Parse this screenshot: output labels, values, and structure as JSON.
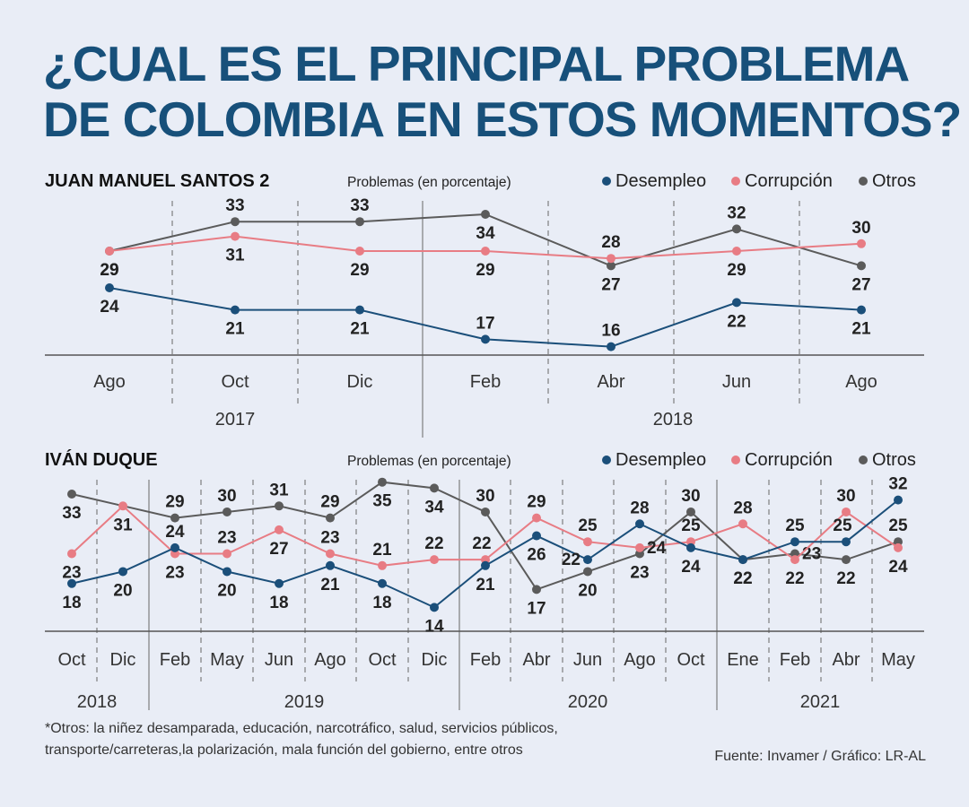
{
  "title": {
    "line1": "¿CUAL ES EL PRINCIPAL PROBLEMA",
    "line2": "DE COLOMBIA EN ESTOS MOMENTOS?"
  },
  "colors": {
    "desempleo": "#1b4f7a",
    "corrupcion": "#e87c84",
    "otros": "#5b5b5b",
    "title": "#17507a",
    "background": "#e9edf6"
  },
  "legend": {
    "desempleo": "Desempleo",
    "corrupcion": "Corrupción",
    "otros": "Otros"
  },
  "chart_data": [
    {
      "type": "line",
      "title": "JUAN MANUEL SANTOS 2",
      "ylabel": "Problemas (en porcentaje)",
      "categories": [
        "Ago",
        "Oct",
        "Dic",
        "Feb",
        "Abr",
        "Jun",
        "Ago"
      ],
      "years": [
        {
          "label": "2017"
        },
        {
          "label": "2018"
        }
      ],
      "series": [
        {
          "key": "desempleo",
          "name": "Desempleo",
          "values": [
            24,
            21,
            21,
            17,
            16,
            22,
            21
          ]
        },
        {
          "key": "corrupcion",
          "name": "Corrupción",
          "values": [
            29,
            31,
            29,
            29,
            28,
            29,
            30
          ]
        },
        {
          "key": "otros",
          "name": "Otros",
          "values": [
            29,
            33,
            33,
            34,
            27,
            32,
            27
          ]
        }
      ]
    },
    {
      "type": "line",
      "title": "IVÁN DUQUE",
      "ylabel": "Problemas (en porcentaje)",
      "categories": [
        "Oct",
        "Dic",
        "Feb",
        "May",
        "Jun",
        "Ago",
        "Oct",
        "Dic",
        "Feb",
        "Abr",
        "Jun",
        "Ago",
        "Oct",
        "Ene",
        "Feb",
        "Abr",
        "May"
      ],
      "years": [
        {
          "label": "2018"
        },
        {
          "label": "2019"
        },
        {
          "label": "2020"
        },
        {
          "label": "2021"
        }
      ],
      "series": [
        {
          "key": "desempleo",
          "name": "Desempleo",
          "values": [
            18,
            20,
            24,
            20,
            18,
            21,
            18,
            14,
            21,
            26,
            22,
            28,
            24,
            22,
            25,
            25,
            32
          ]
        },
        {
          "key": "corrupcion",
          "name": "Corrupción",
          "values": [
            23,
            31,
            23,
            23,
            27,
            23,
            21,
            22,
            22,
            29,
            25,
            24,
            25,
            28,
            22,
            30,
            24
          ]
        },
        {
          "key": "otros",
          "name": "Otros",
          "values": [
            33,
            null,
            29,
            30,
            31,
            29,
            35,
            34,
            30,
            17,
            20,
            23,
            30,
            22,
            23,
            22,
            25
          ]
        }
      ]
    }
  ],
  "footnote": {
    "line1": "*Otros: la niñez desamparada, educación, narcotráfico, salud, servicios públicos,",
    "line2": "transporte/carreteras,la polarización, mala función del gobierno, entre otros"
  },
  "source": "Fuente: Invamer / Gráfico: LR-AL"
}
